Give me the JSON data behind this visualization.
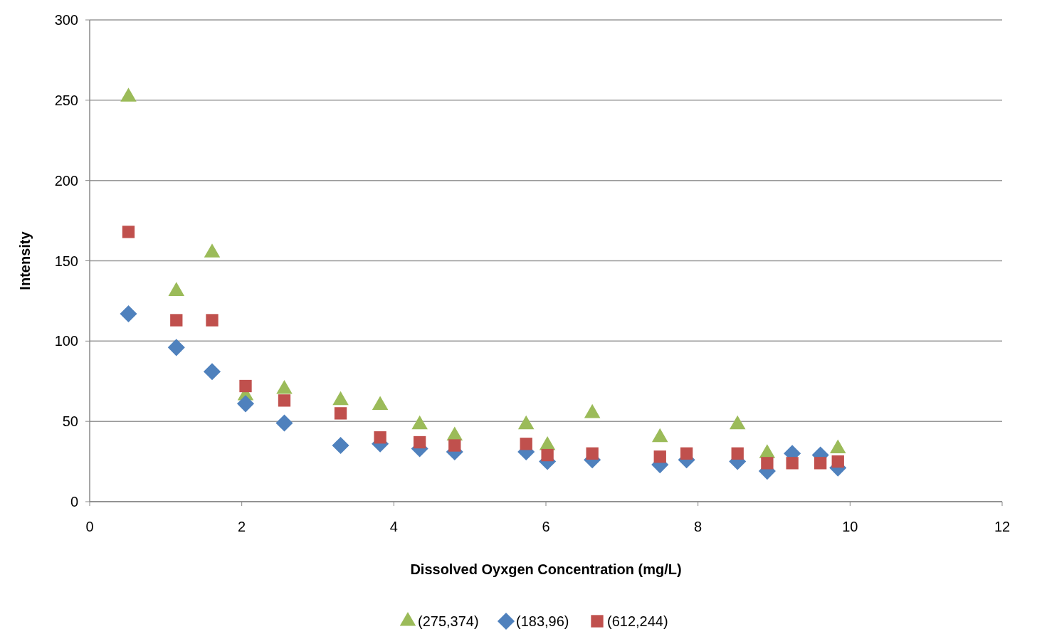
{
  "chart_data": {
    "type": "scatter",
    "xlabel": "Dissolved Oyxgen Concentration (mg/L)",
    "ylabel": "Intensity",
    "xlim": [
      0,
      12
    ],
    "xticks": [
      0,
      2,
      4,
      6,
      8,
      10,
      12
    ],
    "ylim": [
      0,
      300
    ],
    "yticks": [
      0,
      50,
      100,
      150,
      200,
      250,
      300
    ],
    "grid": "y",
    "legend": "bottom",
    "series": [
      {
        "name": "(275,374)",
        "color": "#9bbb59",
        "marker": "triangle",
        "x": [
          0.51,
          1.14,
          1.61,
          2.05,
          2.56,
          3.3,
          3.82,
          4.34,
          4.8,
          5.74,
          6.02,
          6.61,
          7.5,
          8.52,
          8.91,
          9.84
        ],
        "values": [
          252,
          131,
          155,
          66,
          70,
          63,
          60,
          48,
          41,
          48,
          35,
          55,
          40,
          48,
          30,
          33
        ]
      },
      {
        "name": "(183,96)",
        "color": "#4f81bd",
        "marker": "diamond",
        "x": [
          0.51,
          1.14,
          1.61,
          2.05,
          2.56,
          3.3,
          3.82,
          4.34,
          4.8,
          5.74,
          6.02,
          6.61,
          7.5,
          7.85,
          8.52,
          8.91,
          9.24,
          9.61,
          9.84
        ],
        "values": [
          117,
          96,
          81,
          61,
          49,
          35,
          36,
          33,
          31,
          31,
          25,
          26,
          23,
          26,
          25,
          19,
          30,
          29,
          21
        ]
      },
      {
        "name": "(612,244)",
        "color": "#c0504d",
        "marker": "square",
        "x": [
          0.51,
          1.14,
          1.61,
          2.05,
          2.56,
          3.3,
          3.82,
          4.34,
          4.8,
          5.74,
          6.02,
          6.61,
          7.5,
          7.85,
          8.52,
          8.91,
          9.24,
          9.61,
          9.84
        ],
        "values": [
          168,
          113,
          113,
          72,
          63,
          55,
          40,
          37,
          35,
          36,
          29,
          30,
          28,
          30,
          30,
          24,
          24,
          24,
          25
        ]
      }
    ]
  }
}
